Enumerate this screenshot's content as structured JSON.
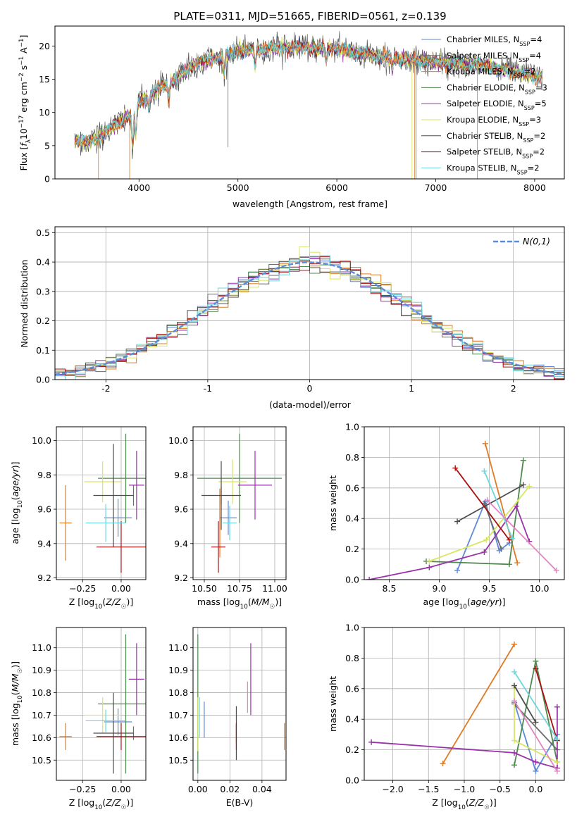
{
  "title": "PLATE=0311, MJD=51665, FIBERID=0561, z=0.139",
  "series": [
    {
      "name": "Chabrier MILES",
      "nssp": "4",
      "color": "#5b8bd9"
    },
    {
      "name": "Salpeter MILES",
      "nssp": "4",
      "color": "#6b6b6b"
    },
    {
      "name": "Kroupa MILES",
      "nssp": "2",
      "color": "#e07b24"
    },
    {
      "name": "Chabrier ELODIE",
      "nssp": "3",
      "color": "#4e8a4e"
    },
    {
      "name": "Salpeter ELODIE",
      "nssp": "5",
      "color": "#9933aa"
    },
    {
      "name": "Kroupa ELODIE",
      "nssp": "3",
      "color": "#d9e660"
    },
    {
      "name": "Chabrier STELIB",
      "nssp": "2",
      "color": "#4d4d4d"
    },
    {
      "name": "Salpeter STELIB",
      "nssp": "2",
      "color": "#aa1111"
    },
    {
      "name": "Kroupa STELIB",
      "nssp": "2",
      "color": "#6fd6dd"
    }
  ],
  "chart_data": [
    {
      "id": "spectrum",
      "type": "line",
      "xlabel": "wavelength [Angstrom, rest frame]",
      "ylabel": "Flux [f_λ 10^-17 erg cm^-2 s^-1 A^-1]",
      "xlim": [
        3150,
        8300
      ],
      "ylim": [
        0,
        23
      ],
      "xticks": [
        4000,
        5000,
        6000,
        7000,
        8000
      ],
      "yticks": [
        0,
        5,
        10,
        15,
        20
      ],
      "continuum": [
        [
          3350,
          5.8
        ],
        [
          3500,
          5.5
        ],
        [
          3700,
          7.5
        ],
        [
          3900,
          9.5
        ],
        [
          4000,
          11.5
        ],
        [
          4200,
          13.5
        ],
        [
          4400,
          15.5
        ],
        [
          4600,
          17.5
        ],
        [
          4800,
          18.3
        ],
        [
          5000,
          19.2
        ],
        [
          5200,
          19.5
        ],
        [
          5500,
          19.8
        ],
        [
          6000,
          19.6
        ],
        [
          6500,
          18.3
        ],
        [
          7000,
          17.6
        ],
        [
          7500,
          17.0
        ],
        [
          8000,
          15.5
        ],
        [
          8100,
          15.3
        ]
      ]
    },
    {
      "id": "residuals",
      "type": "step",
      "xlabel": "(data-model)/error",
      "ylabel": "Normed distribution",
      "xlim": [
        -2.5,
        2.5
      ],
      "ylim": [
        0,
        0.52
      ],
      "xticks": [
        -2,
        -1,
        0,
        1,
        2
      ],
      "yticks": [
        0.0,
        0.1,
        0.2,
        0.3,
        0.4,
        0.5
      ],
      "normal_label": "N(0,1)",
      "normal_color": "#5b8bd9"
    },
    {
      "id": "age-vs-Z",
      "type": "errorbar",
      "xlabel": "Z [log10(Z/Z☉)]",
      "ylabel": "age  [log10(age/yr)]",
      "xlim": [
        -0.42,
        0.16
      ],
      "ylim": [
        9.19,
        10.08
      ],
      "xticks": [
        -0.25,
        0.0
      ],
      "xticklabels": [
        "−0.25",
        "0.00"
      ],
      "yticks": [
        9.2,
        9.4,
        9.6,
        9.8,
        10.0
      ],
      "yticklabels": [
        "9.2",
        "9.4",
        "9.6",
        "9.8",
        "10.0"
      ],
      "points": [
        {
          "s": 0,
          "x": -0.02,
          "xerr": 0.09,
          "y": 9.55,
          "yerr": 0.11
        },
        {
          "s": 1,
          "x": 0.08,
          "xerr": 0.0,
          "y": 9.68,
          "yerr": 0.06
        },
        {
          "s": 2,
          "x": -0.36,
          "xerr": 0.04,
          "y": 9.52,
          "yerr": 0.22
        },
        {
          "s": 3,
          "x": 0.03,
          "xerr": 0.18,
          "y": 9.78,
          "yerr": 0.26
        },
        {
          "s": 4,
          "x": 0.1,
          "xerr": 0.05,
          "y": 9.74,
          "yerr": 0.2
        },
        {
          "s": 5,
          "x": -0.12,
          "xerr": 0.12,
          "y": 9.76,
          "yerr": 0.12
        },
        {
          "s": 6,
          "x": -0.05,
          "xerr": 0.13,
          "y": 9.68,
          "yerr": 0.3
        },
        {
          "s": 7,
          "x": 0.0,
          "xerr": 0.16,
          "y": 9.38,
          "yerr": 0.15
        },
        {
          "s": 8,
          "x": -0.1,
          "xerr": 0.13,
          "y": 9.52,
          "yerr": 0.11
        }
      ]
    },
    {
      "id": "age-vs-mass",
      "type": "errorbar",
      "xlabel": "mass [log10(M/M☉)]",
      "ylabel": "",
      "xlim": [
        10.42,
        11.08
      ],
      "ylim": [
        9.19,
        10.08
      ],
      "xticks": [
        10.5,
        10.75,
        11.0
      ],
      "xticklabels": [
        "10.50",
        "10.75",
        "11.00"
      ],
      "yticks": [
        9.2,
        9.4,
        9.6,
        9.8,
        10.0
      ],
      "yticklabels": [
        "9.2",
        "9.4",
        "9.6",
        "9.8",
        "10.0"
      ],
      "points": [
        {
          "s": 0,
          "x": 10.67,
          "xerr": 0.06,
          "y": 9.55,
          "yerr": 0.1
        },
        {
          "s": 1,
          "x": 10.62,
          "xerr": 0.0,
          "y": 9.68,
          "yerr": 0.05
        },
        {
          "s": 2,
          "x": 10.61,
          "xerr": 0.0,
          "y": 9.52,
          "yerr": 0.2
        },
        {
          "s": 3,
          "x": 10.75,
          "xerr": 0.3,
          "y": 9.78,
          "yerr": 0.26
        },
        {
          "s": 4,
          "x": 10.86,
          "xerr": 0.12,
          "y": 9.74,
          "yerr": 0.2
        },
        {
          "s": 5,
          "x": 10.7,
          "xerr": 0.1,
          "y": 9.76,
          "yerr": 0.13
        },
        {
          "s": 6,
          "x": 10.62,
          "xerr": 0.14,
          "y": 9.68,
          "yerr": 0.2
        },
        {
          "s": 7,
          "x": 10.6,
          "xerr": 0.05,
          "y": 9.38,
          "yerr": 0.15
        },
        {
          "s": 8,
          "x": 10.68,
          "xerr": 0.05,
          "y": 9.52,
          "yerr": 0.1
        }
      ]
    },
    {
      "id": "weight-vs-age",
      "type": "line",
      "xlabel": "age  [log10(age/yr)]",
      "ylabel": "mass weight",
      "xlim": [
        8.25,
        10.25
      ],
      "ylim": [
        0,
        1.0
      ],
      "xticks": [
        8.5,
        9.0,
        9.5,
        10.0
      ],
      "xticklabels": [
        "8.5",
        "9.0",
        "9.5",
        "10.0"
      ],
      "yticks": [
        0.0,
        0.2,
        0.4,
        0.6,
        0.8,
        1.0
      ],
      "yticklabels": [
        "0.0",
        "0.2",
        "0.4",
        "0.6",
        "0.8",
        "1.0"
      ],
      "lines": [
        {
          "s": 0,
          "pts": [
            [
              9.18,
              0.06
            ],
            [
              9.46,
              0.51
            ],
            [
              9.6,
              0.19
            ],
            [
              9.7,
              0.24
            ]
          ]
        },
        {
          "s": 1,
          "pts": [
            [
              9.45,
              0.5
            ],
            [
              9.62,
              0.2
            ]
          ]
        },
        {
          "s": 2,
          "pts": [
            [
              9.46,
              0.89
            ],
            [
              9.78,
              0.11
            ]
          ]
        },
        {
          "s": 3,
          "pts": [
            [
              8.87,
              0.12
            ],
            [
              9.7,
              0.1
            ],
            [
              9.84,
              0.78
            ]
          ]
        },
        {
          "s": 4,
          "pts": [
            [
              8.3,
              0.0
            ],
            [
              8.9,
              0.08
            ],
            [
              9.45,
              0.18
            ],
            [
              9.77,
              0.48
            ],
            [
              9.9,
              0.25
            ]
          ]
        },
        {
          "s": 5,
          "pts": [
            [
              8.9,
              0.12
            ],
            [
              9.47,
              0.26
            ],
            [
              9.9,
              0.61
            ]
          ]
        },
        {
          "s": 6,
          "pts": [
            [
              9.18,
              0.38
            ],
            [
              9.84,
              0.62
            ]
          ]
        },
        {
          "s": 7,
          "pts": [
            [
              9.16,
              0.73
            ],
            [
              9.7,
              0.26
            ]
          ]
        },
        {
          "s": 8,
          "pts": [
            [
              9.45,
              0.71
            ],
            [
              9.73,
              0.27
            ]
          ]
        },
        {
          "s": 9,
          "pts": [
            [
              9.48,
              0.52
            ],
            [
              10.17,
              0.06
            ]
          ]
        }
      ],
      "extra_color": "#e384c4"
    },
    {
      "id": "mass-vs-Z",
      "type": "errorbar",
      "xlabel": "Z [log10(Z/Z☉)]",
      "ylabel": "mass [log10(M/M☉)]",
      "xlim": [
        -0.42,
        0.16
      ],
      "ylim": [
        10.41,
        11.09
      ],
      "xticks": [
        -0.25,
        0.0
      ],
      "xticklabels": [
        "−0.25",
        "0.00"
      ],
      "yticks": [
        10.5,
        10.6,
        10.7,
        10.8,
        10.9,
        11.0
      ],
      "yticklabels": [
        "10.5",
        "10.6",
        "10.7",
        "10.8",
        "10.9",
        "11.0"
      ],
      "points": [
        {
          "s": 0,
          "x": -0.02,
          "xerr": 0.09,
          "y": 10.67,
          "yerr": 0.06
        },
        {
          "s": 1,
          "x": 0.08,
          "xerr": 0.0,
          "y": 10.62,
          "yerr": 0.03
        },
        {
          "s": 2,
          "x": -0.36,
          "xerr": 0.04,
          "y": 10.605,
          "yerr": 0.06
        },
        {
          "s": 3,
          "x": 0.03,
          "xerr": 0.18,
          "y": 10.75,
          "yerr": 0.31
        },
        {
          "s": 4,
          "x": 0.1,
          "xerr": 0.05,
          "y": 10.86,
          "yerr": 0.16
        },
        {
          "s": 5,
          "x": -0.12,
          "xerr": 0.12,
          "y": 10.7,
          "yerr": 0.08
        },
        {
          "s": 6,
          "x": -0.05,
          "xerr": 0.13,
          "y": 10.62,
          "yerr": 0.18
        },
        {
          "s": 7,
          "x": 0.0,
          "xerr": 0.16,
          "y": 10.605,
          "yerr": 0.06
        },
        {
          "s": 8,
          "x": -0.1,
          "xerr": 0.13,
          "y": 10.675,
          "yerr": 0.05
        }
      ]
    },
    {
      "id": "mass-vs-ebv",
      "type": "errorbar",
      "xlabel": "E(B-V)",
      "ylabel": "",
      "xlim": [
        -0.003,
        0.055
      ],
      "ylim": [
        10.41,
        11.09
      ],
      "xticks": [
        0.0,
        0.02,
        0.04
      ],
      "xticklabels": [
        "0.00",
        "0.02",
        "0.04"
      ],
      "yticks": [
        10.5,
        10.6,
        10.7,
        10.8,
        10.9,
        11.0
      ],
      "yticklabels": [
        "10.5",
        "10.6",
        "10.7",
        "10.8",
        "10.9",
        "11.0"
      ],
      "points": [
        {
          "s": 0,
          "x": 0.004,
          "xerr": 0.0,
          "y": 10.68,
          "yerr": 0.08
        },
        {
          "s": 1,
          "x": 0.024,
          "xerr": 0.0,
          "y": 10.62,
          "yerr": 0.04
        },
        {
          "s": 2,
          "x": 0.054,
          "xerr": 0.0,
          "y": 10.605,
          "yerr": 0.06
        },
        {
          "s": 3,
          "x": 0.0,
          "xerr": 0.0,
          "y": 10.75,
          "yerr": 0.31
        },
        {
          "s": 4,
          "x": 0.033,
          "xerr": 0.0,
          "y": 10.86,
          "yerr": 0.16
        },
        {
          "s": 5,
          "x": 0.0,
          "xerr": 0.0,
          "y": 10.66,
          "yerr": 0.12
        },
        {
          "s": 6,
          "x": 0.024,
          "xerr": 0.0,
          "y": 10.62,
          "yerr": 0.12
        },
        {
          "s": 7,
          "x": 0.024,
          "xerr": 0.0,
          "y": 10.605,
          "yerr": 0.06
        },
        {
          "s": 8,
          "x": 0.001,
          "xerr": 0.0,
          "y": 10.69,
          "yerr": 0.09
        },
        {
          "s": 9,
          "x": 0.031,
          "xerr": 0.0,
          "y": 10.78,
          "yerr": 0.07
        }
      ],
      "extra_color": "#e384c4"
    },
    {
      "id": "weight-vs-Z",
      "type": "line",
      "xlabel": "Z [log10(Z/Z☉)]",
      "ylabel": "mass weight",
      "xlim": [
        -2.4,
        0.4
      ],
      "ylim": [
        0,
        1.0
      ],
      "xticks": [
        -2.0,
        -1.5,
        -1.0,
        -0.5,
        0.0
      ],
      "xticklabels": [
        "−2.0",
        "−1.5",
        "−1.0",
        "−0.5",
        "0.0"
      ],
      "yticks": [
        0.0,
        0.2,
        0.4,
        0.6,
        0.8,
        1.0
      ],
      "yticklabels": [
        "0.0",
        "0.2",
        "0.4",
        "0.6",
        "0.8",
        "1.0"
      ],
      "lines": [
        {
          "s": 0,
          "pts": [
            [
              -0.3,
              0.51
            ],
            [
              0.0,
              0.06
            ],
            [
              0.3,
              0.3
            ]
          ]
        },
        {
          "s": 1,
          "pts": [
            [
              -0.3,
              0.5
            ],
            [
              0.3,
              0.2
            ]
          ]
        },
        {
          "s": 2,
          "pts": [
            [
              -1.3,
              0.11
            ],
            [
              -0.3,
              0.89
            ]
          ]
        },
        {
          "s": 3,
          "pts": [
            [
              -0.3,
              0.1
            ],
            [
              0.0,
              0.78
            ],
            [
              0.3,
              0.12
            ]
          ]
        },
        {
          "s": 4,
          "pts": [
            [
              -2.3,
              0.25
            ],
            [
              -0.3,
              0.18
            ],
            [
              0.0,
              0.12
            ],
            [
              0.3,
              0.08
            ],
            [
              0.3,
              0.48
            ]
          ]
        },
        {
          "s": 5,
          "pts": [
            [
              -0.3,
              0.61
            ],
            [
              -0.3,
              0.26
            ],
            [
              0.3,
              0.12
            ]
          ]
        },
        {
          "s": 6,
          "pts": [
            [
              -0.3,
              0.62
            ],
            [
              0.0,
              0.38
            ]
          ]
        },
        {
          "s": 7,
          "pts": [
            [
              0.0,
              0.73
            ],
            [
              0.3,
              0.26
            ]
          ]
        },
        {
          "s": 8,
          "pts": [
            [
              -0.3,
              0.71
            ],
            [
              0.3,
              0.27
            ]
          ]
        },
        {
          "s": 9,
          "pts": [
            [
              -0.3,
              0.52
            ],
            [
              0.3,
              0.06
            ]
          ]
        }
      ],
      "extra_color": "#e384c4"
    }
  ]
}
